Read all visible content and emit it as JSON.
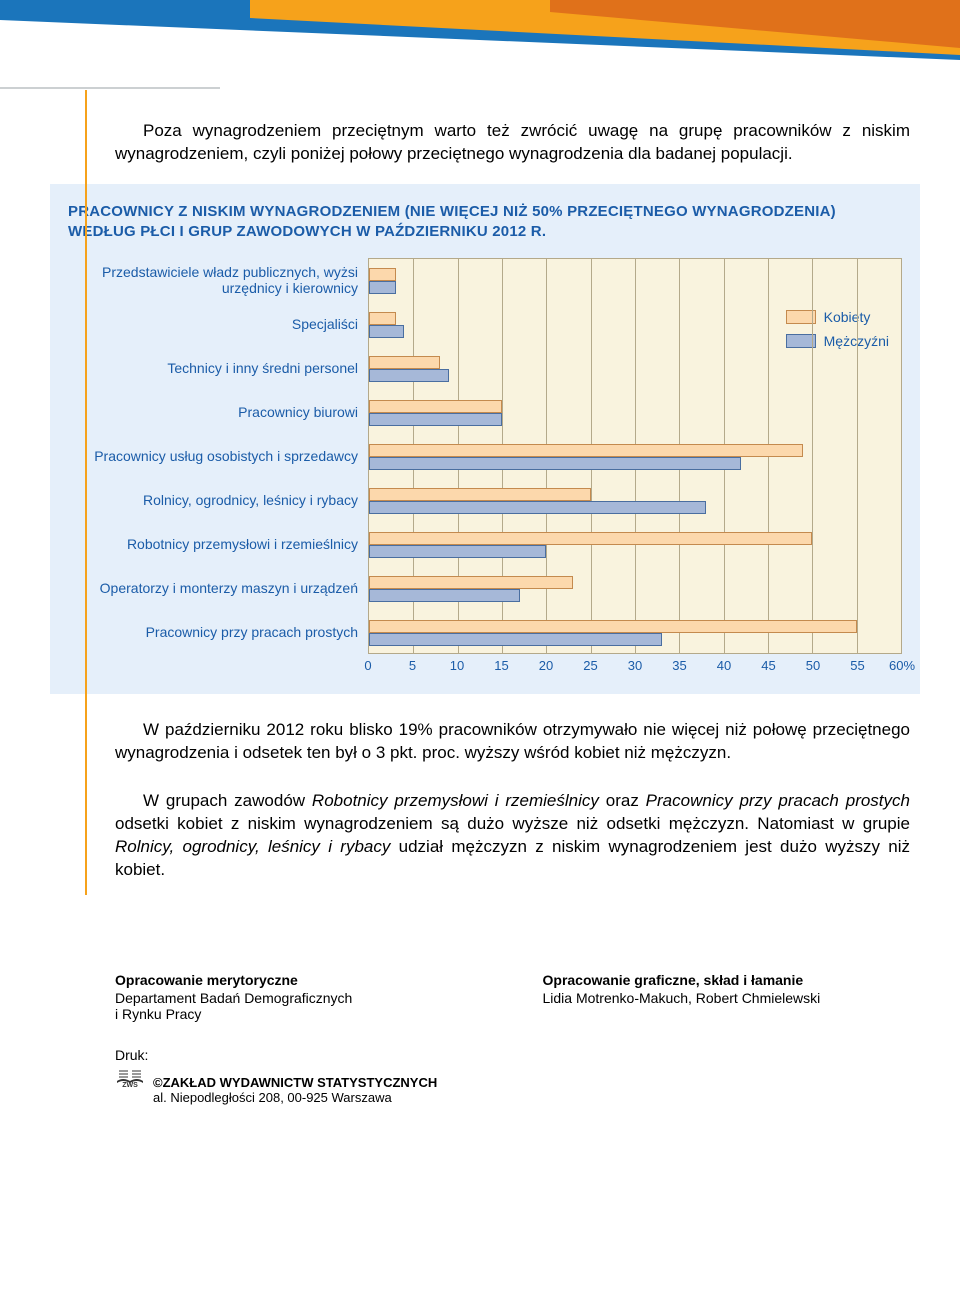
{
  "banner": {
    "bg": "#ffffff",
    "blue": "#1b75bb",
    "orange_light": "#f6a21b",
    "orange_dark": "#e0711a"
  },
  "intro": "Poza wynagrodzeniem przeciętnym warto też zwrócić uwagę na grupę pracowników z niskim wynagrodzeniem, czyli poniżej połowy przeciętnego wynagrodzenia dla badanej populacji.",
  "chart": {
    "title": "PRACOWNICY Z NISKIM WYNAGRODZENIEM (NIE WIĘCEJ NIŻ 50% PRZECIĘTNEGO WYNAGRODZENIA) WEDŁUG PŁCI I GRUP ZAWODOWYCH W PAŹDZIERNIKU 2012 R.",
    "xmin": 0,
    "xmax": 60,
    "xtick_step": 5,
    "xtick_suffix_last": "%",
    "colors": {
      "plot_bg": "#f9f3de",
      "grid": "#b4a98a",
      "kobiety_fill": "#fcd8ac",
      "kobiety_border": "#c48a4e",
      "mezczyzni_fill": "#a6b8d8",
      "mezczyzni_border": "#4a6ea0",
      "text": "#1b5ca8"
    },
    "legend": {
      "kobiety": "Kobiety",
      "mezczyzni": "Mężczyźni"
    },
    "categories": [
      {
        "label": "Przedstawiciele władz publicznych, wyżsi urzędnicy i kierownicy",
        "kobiety": 3,
        "mezczyzni": 3
      },
      {
        "label": "Specjaliści",
        "kobiety": 3,
        "mezczyzni": 4
      },
      {
        "label": "Technicy i inny średni personel",
        "kobiety": 8,
        "mezczyzni": 9
      },
      {
        "label": "Pracownicy biurowi",
        "kobiety": 15,
        "mezczyzni": 15
      },
      {
        "label": "Pracownicy usług osobistych i sprzedawcy",
        "kobiety": 49,
        "mezczyzni": 42
      },
      {
        "label": "Rolnicy, ogrodnicy, leśnicy i rybacy",
        "kobiety": 25,
        "mezczyzni": 38
      },
      {
        "label": "Robotnicy przemysłowi i rzemieślnicy",
        "kobiety": 50,
        "mezczyzni": 20
      },
      {
        "label": "Operatorzy i monterzy maszyn i urządzeń",
        "kobiety": 23,
        "mezczyzni": 17
      },
      {
        "label": "Pracownicy przy pracach prostych",
        "kobiety": 55,
        "mezczyzni": 33
      }
    ]
  },
  "para2_pre": "W październiku 2012 roku blisko 19% pracowników otrzymywało nie więcej niż połowę przeciętnego wynagrodzenia i odsetek ten był o 3 pkt. proc. wyższy wśród kobiet niż mężczyzn.",
  "para3_parts": {
    "a": "W grupach zawodów ",
    "b_i": "Robotnicy przemysłowi i rzemieślnicy",
    "c": " oraz ",
    "d_i": "Pracownicy przy pracach prostych",
    "e": " odsetki kobiet z niskim wynagrodzeniem są dużo wyższe niż odsetki mężczyzn. Natomiast w grupie ",
    "f_i": "Rolnicy, ogrodnicy, leśnicy i rybacy",
    "g": " udział mężczyzn z niskim wynagrodzeniem jest dużo wyższy niż kobiet."
  },
  "credits": {
    "left_title": "Opracowanie merytoryczne",
    "left_body1": "Departament Badań Demograficznych",
    "left_body2": "i Rynku Pracy",
    "right_title": "Opracowanie graficzne, skład i łamanie",
    "right_body": "Lidia Motrenko-Makuch, Robert Chmielewski"
  },
  "druk": {
    "label": "Druk:",
    "zws_name": "©ZAKŁAD WYDAWNICTW STATYSTYCZNYCH",
    "zws_addr": "al. Niepodległości 208, 00-925 Warszawa"
  }
}
